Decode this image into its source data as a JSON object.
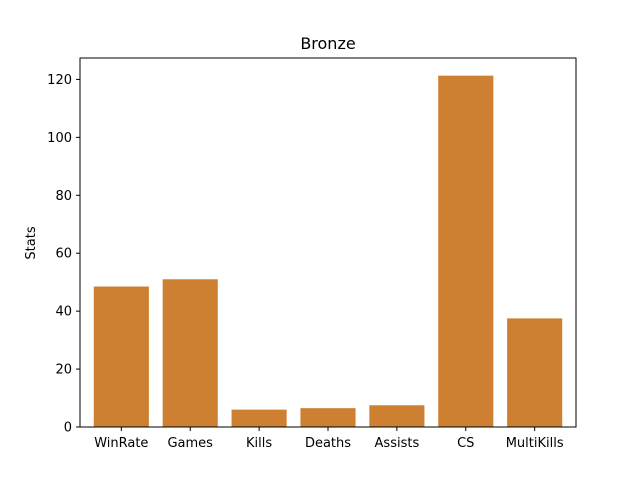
{
  "chart_data": {
    "type": "bar",
    "title": "Bronze",
    "xlabel": "",
    "ylabel": "Stats",
    "categories": [
      "WinRate",
      "Games",
      "Kills",
      "Deaths",
      "Assists",
      "CS",
      "MultiKills"
    ],
    "values": [
      48.5,
      51.0,
      6.0,
      6.5,
      7.5,
      121.3,
      37.5
    ],
    "ylim": [
      0,
      127.4
    ],
    "yticks": [
      0,
      20,
      40,
      60,
      80,
      100,
      120
    ],
    "grid": false,
    "legend": "none",
    "bar_color": "#cd7f32"
  }
}
